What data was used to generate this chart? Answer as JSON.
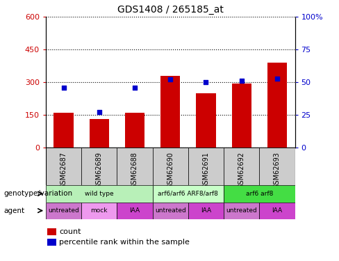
{
  "title": "GDS1408 / 265185_at",
  "samples": [
    "GSM62687",
    "GSM62689",
    "GSM62688",
    "GSM62690",
    "GSM62691",
    "GSM62692",
    "GSM62693"
  ],
  "bar_values": [
    160,
    132,
    160,
    330,
    248,
    295,
    390
  ],
  "percentile_values": [
    46,
    27,
    46,
    52,
    50,
    51,
    53
  ],
  "bar_color": "#cc0000",
  "percentile_color": "#0000cc",
  "ylim_left": [
    0,
    600
  ],
  "ylim_right": [
    0,
    100
  ],
  "yticks_left": [
    0,
    150,
    300,
    450,
    600
  ],
  "yticks_right": [
    0,
    25,
    50,
    75,
    100
  ],
  "ytick_labels_left": [
    "0",
    "150",
    "300",
    "450",
    "600"
  ],
  "ytick_labels_right": [
    "0",
    "25",
    "50",
    "75",
    "100%"
  ],
  "genotype_groups": [
    {
      "label": "wild type",
      "span": [
        0,
        3
      ],
      "color": "#b8f0b8"
    },
    {
      "label": "arf6/arf6 ARF8/arf8",
      "span": [
        3,
        5
      ],
      "color": "#c8ffc8"
    },
    {
      "label": "arf6 arf8",
      "span": [
        5,
        7
      ],
      "color": "#44dd44"
    }
  ],
  "agent_groups": [
    {
      "label": "untreated",
      "span": [
        0,
        1
      ],
      "color": "#cc77cc"
    },
    {
      "label": "mock",
      "span": [
        1,
        2
      ],
      "color": "#ee99ee"
    },
    {
      "label": "IAA",
      "span": [
        2,
        3
      ],
      "color": "#cc44cc"
    },
    {
      "label": "untreated",
      "span": [
        3,
        4
      ],
      "color": "#cc77cc"
    },
    {
      "label": "IAA",
      "span": [
        4,
        5
      ],
      "color": "#cc44cc"
    },
    {
      "label": "untreated",
      "span": [
        5,
        6
      ],
      "color": "#cc77cc"
    },
    {
      "label": "IAA",
      "span": [
        6,
        7
      ],
      "color": "#cc44cc"
    }
  ],
  "legend_count_color": "#cc0000",
  "legend_percentile_color": "#0000cc",
  "bar_width": 0.55,
  "xtick_bg_color": "#cccccc",
  "right_ytick_top_label": "100%"
}
